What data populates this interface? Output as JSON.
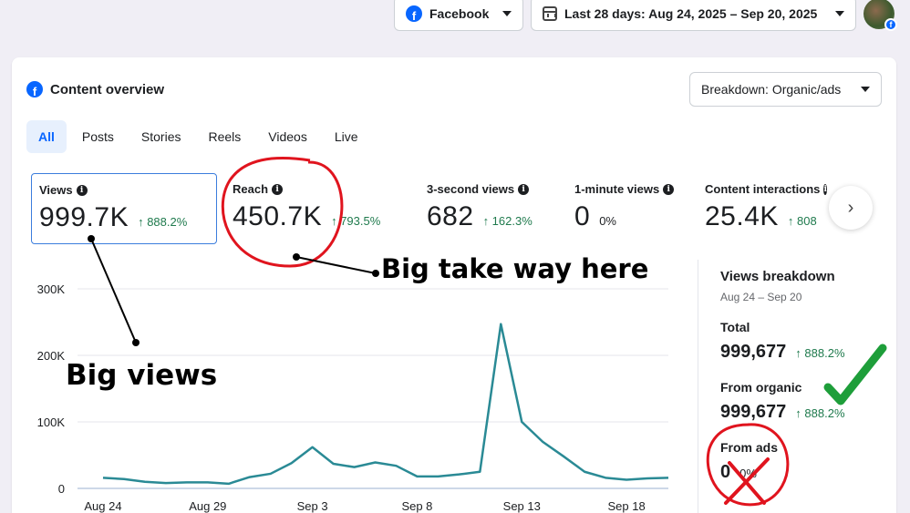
{
  "topbar": {
    "platform_label": "Facebook",
    "date_range_label": "Last 28 days: Aug 24, 2025 – Sep 20, 2025"
  },
  "card": {
    "title": "Content overview",
    "breakdown_label": "Breakdown: Organic/ads"
  },
  "tabs": [
    {
      "label": "All",
      "active": true
    },
    {
      "label": "Posts"
    },
    {
      "label": "Stories"
    },
    {
      "label": "Reels"
    },
    {
      "label": "Videos"
    },
    {
      "label": "Live"
    }
  ],
  "metrics": [
    {
      "label": "Views",
      "value": "999.7K",
      "change": "↑ 888.2%"
    },
    {
      "label": "Reach",
      "value": "450.7K",
      "change": "↑ 793.5%"
    },
    {
      "label": "3-second views",
      "value": "682",
      "change": "↑ 162.3%"
    },
    {
      "label": "1-minute views",
      "value": "0",
      "change": "0%"
    },
    {
      "label": "Content interactions",
      "value": "25.4K",
      "change": "↑ 808"
    }
  ],
  "chart_data": {
    "type": "line",
    "y_ticks": [
      "300K",
      "200K",
      "100K",
      "0"
    ],
    "x_ticks": [
      "Aug 24",
      "Aug 29",
      "Sep 3",
      "Sep 8",
      "Sep 13",
      "Sep 18"
    ],
    "ylim": [
      0,
      300000
    ],
    "x": [
      "Aug 24",
      "Aug 25",
      "Aug 26",
      "Aug 27",
      "Aug 28",
      "Aug 29",
      "Aug 30",
      "Aug 31",
      "Sep 1",
      "Sep 2",
      "Sep 3",
      "Sep 4",
      "Sep 5",
      "Sep 6",
      "Sep 7",
      "Sep 8",
      "Sep 9",
      "Sep 10",
      "Sep 11",
      "Sep 12",
      "Sep 13",
      "Sep 14",
      "Sep 15",
      "Sep 16",
      "Sep 17",
      "Sep 18",
      "Sep 19",
      "Sep 20"
    ],
    "values": [
      16000,
      14000,
      10000,
      8000,
      9000,
      9000,
      7000,
      17000,
      22000,
      38000,
      62000,
      37000,
      32000,
      39000,
      34000,
      18000,
      18000,
      21000,
      25000,
      247000,
      100000,
      70000,
      48000,
      25000,
      16000,
      13000,
      15000,
      16000
    ],
    "line_color": "#2a8a95",
    "grid": true
  },
  "views_breakdown": {
    "title": "Views breakdown",
    "date": "Aug 24 – Sep 20",
    "total_label": "Total",
    "total_value": "999,677",
    "total_change": "↑ 888.2%",
    "organic_label": "From organic",
    "organic_value": "999,677",
    "organic_change": "↑ 888.2%",
    "ads_label": "From ads",
    "ads_value": "0",
    "ads_change": "0%"
  },
  "annotations": {
    "big_takeaway": "Big take way here",
    "big_views": "Big views"
  },
  "colors": {
    "brand": "#0866ff",
    "positive": "#1f7a4d",
    "annotation_red": "#e0141e",
    "annotation_green": "#1e9e3a"
  }
}
